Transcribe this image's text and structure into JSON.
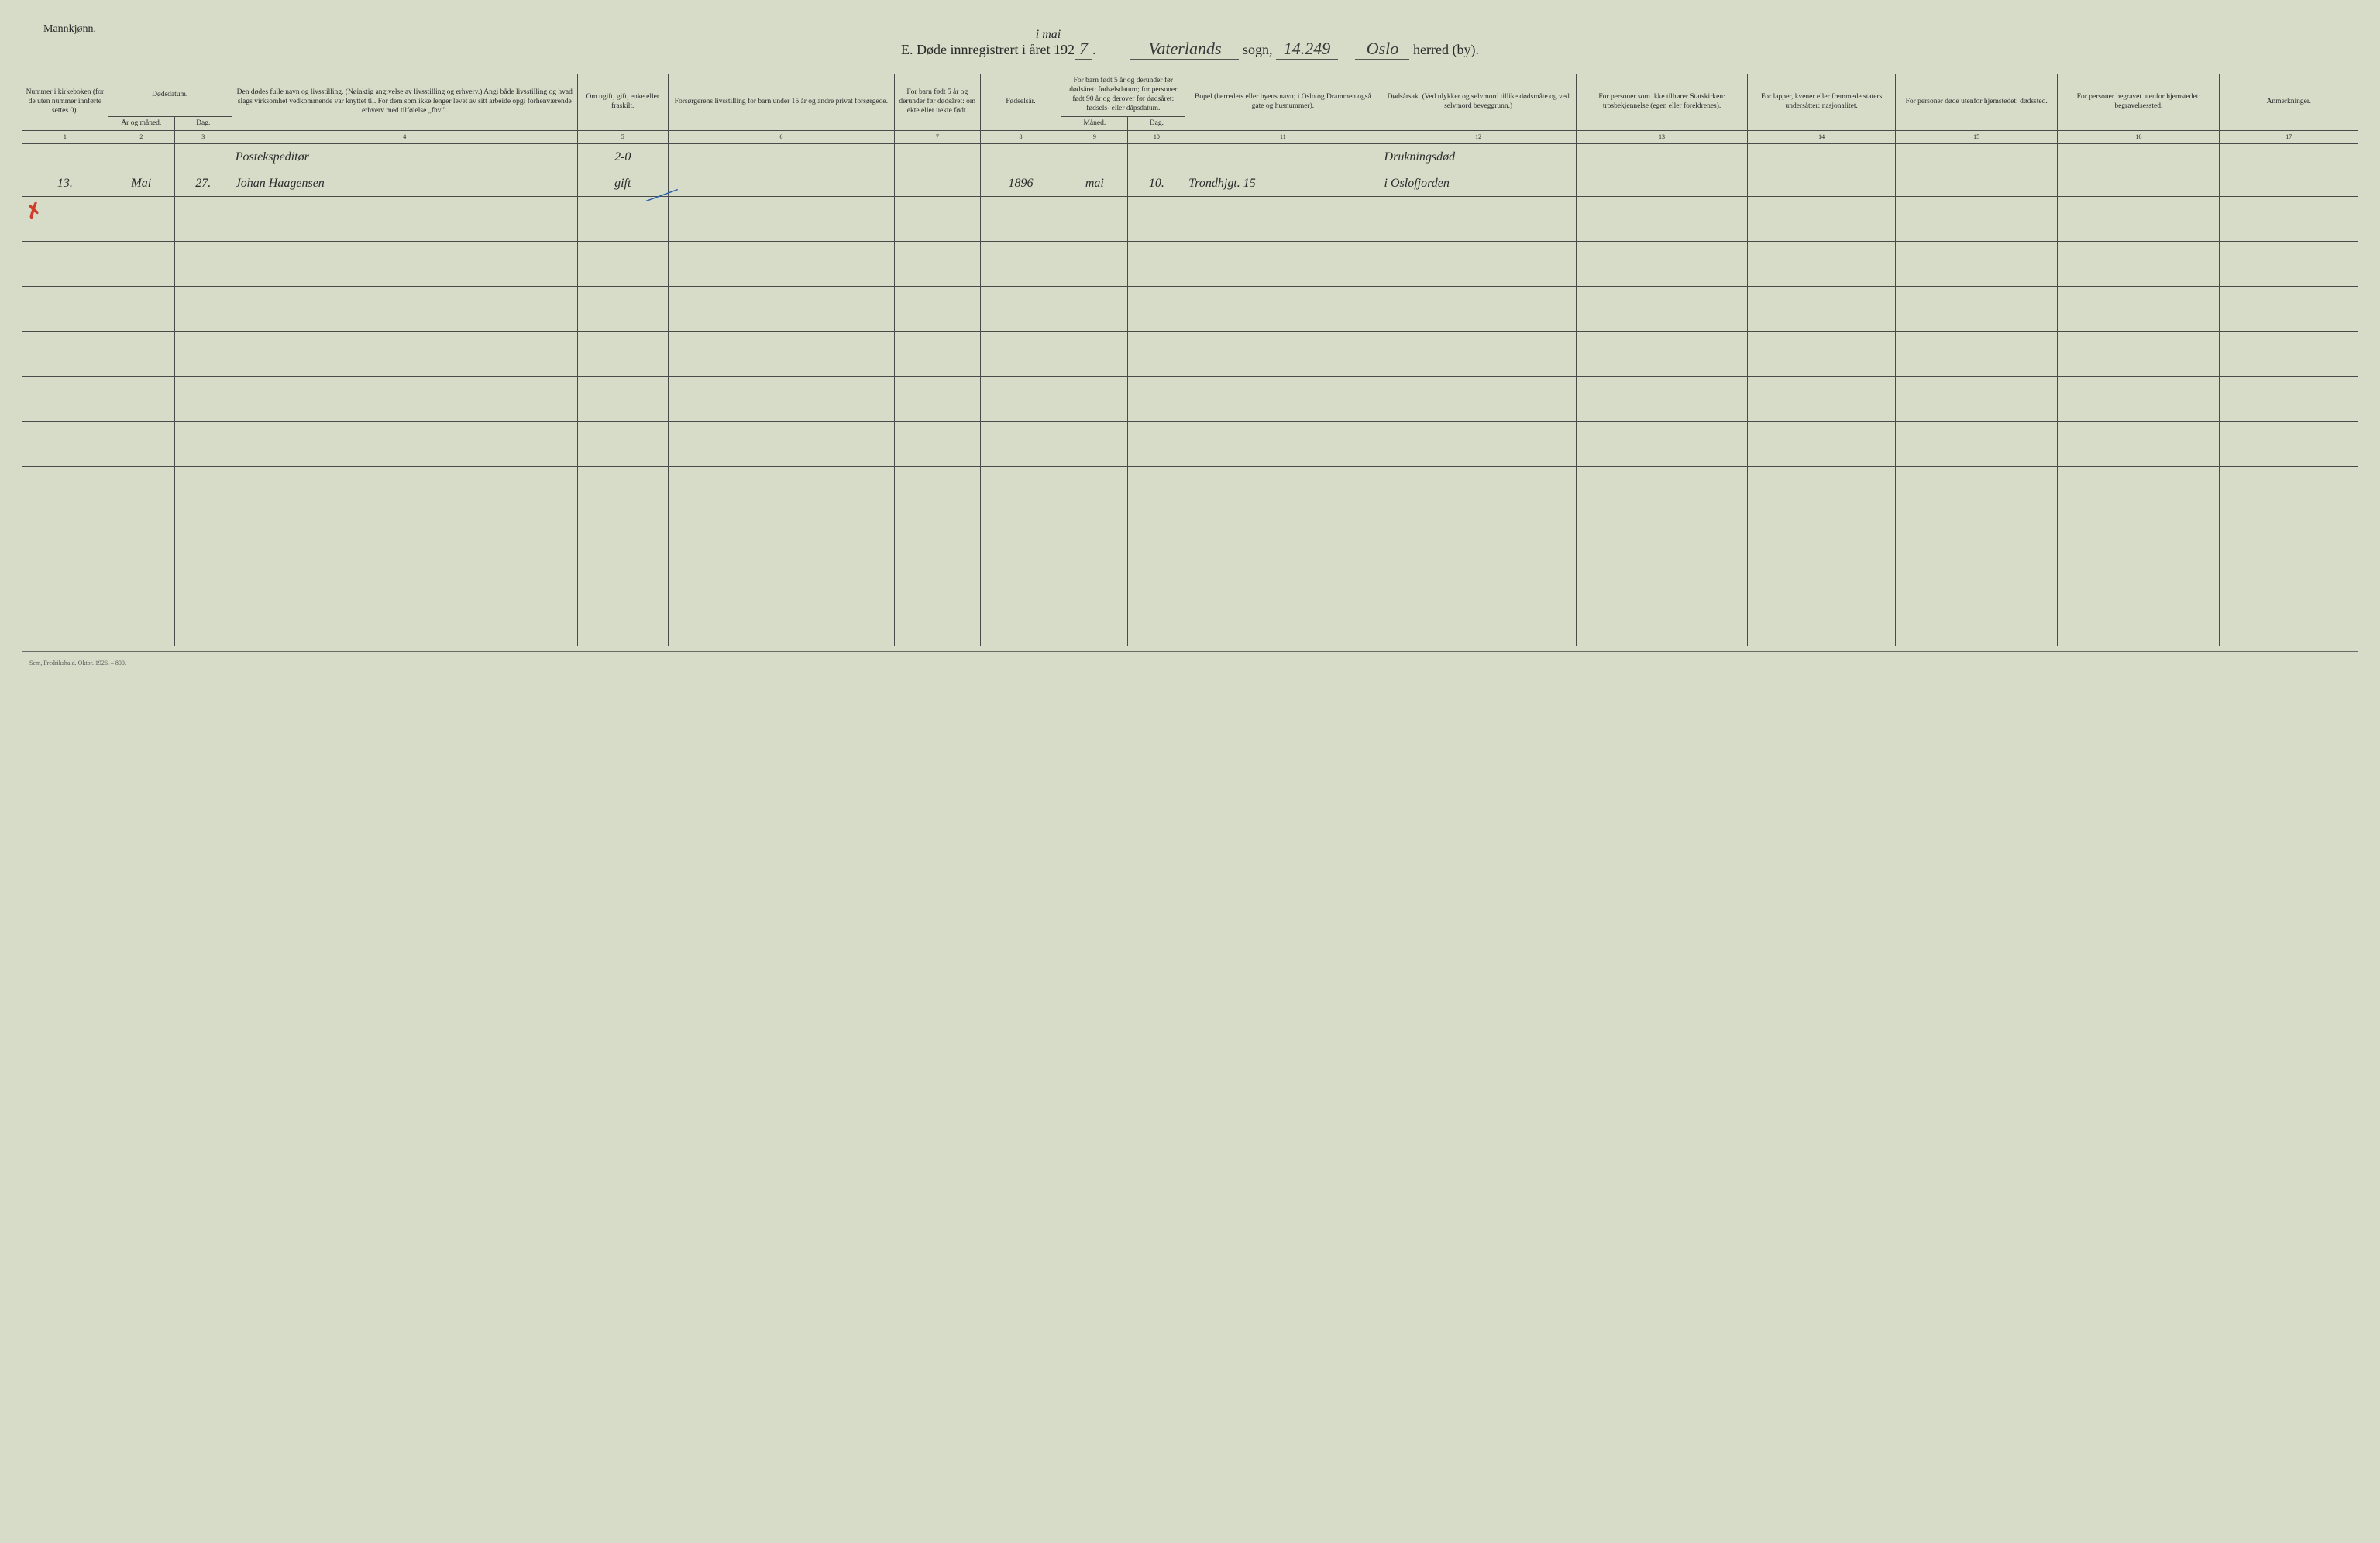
{
  "colors": {
    "paper": "#d6dcc8",
    "ink": "#2a2a2a",
    "rule": "#4a4a4a",
    "red": "#d23a2a",
    "blue": "#2a5fb0"
  },
  "header": {
    "gender_label": "Mannkjønn.",
    "title_prefix": "E.   Døde innregistrert",
    "title_year_label": "i året 192",
    "handwritten_above_year": "i mai",
    "year_digit": "7",
    "title_period": ".",
    "sogn_value": "Vaterlands",
    "sogn_label": "sogn,",
    "code_value": "14.249",
    "herred_value": "Oslo",
    "herred_label": "herred (by)."
  },
  "columns": {
    "c1": "Nummer i kirke­boken (for de uten nummer innførte settes 0).",
    "c2_group": "Dødsdatum.",
    "c2a": "År og måned.",
    "c2b": "Dag.",
    "c4": "Den dødes fulle navn og livsstilling. (Nøiaktig angivelse av livsstilling og erhverv.) Angi både livsstilling og hvad slags virksomhet vedkommende var knyttet til. For dem som ikke lenger levet av sitt arbeide opgi forhenværende erhverv med tilføielse „fhv.\".",
    "c5": "Om ugift, gift, enke eller fraskilt.",
    "c6": "Forsørgerens livsstilling for barn under 15 år og andre privat forsørgede.",
    "c7": "For barn født 5 år og derunder før døds­året: om ekte eller uekte født.",
    "c8": "Fødsels­år.",
    "c9_group": "For barn født 5 år og der­under før dødsåret: fødselsdatum; for personer født 90 år og derover før dødsåret: fødsels- eller dåpsdatum.",
    "c9a": "Måned.",
    "c9b": "Dag.",
    "c11": "Bopel (herredets eller byens navn; i Oslo og Drammen også gate og husnummer).",
    "c12": "Dødsårsak. (Ved ulykker og selv­mord tillike dødsmåte og ved selvmord beveggrunn.)",
    "c13": "For personer som ikke tilhører Statskirken: trosbekjennelse (egen eller foreldrenes).",
    "c14": "For lapper, kvener eller fremmede staters undersåtter: nasjonalitet.",
    "c15": "For personer døde utenfor hjemstedet: dødssted.",
    "c16": "For personer begravet utenfor hjemstedet: begravelsessted.",
    "c17": "Anmerkninger."
  },
  "colnums": [
    "1",
    "2",
    "3",
    "4",
    "5",
    "6",
    "7",
    "8",
    "9",
    "10",
    "11",
    "12",
    "13",
    "14",
    "15",
    "16",
    "17"
  ],
  "entry": {
    "row_top": {
      "occupation_line": "Postekspeditør",
      "marital_note": "2-0",
      "cause_note": "Drukningsdød"
    },
    "row_bottom": {
      "number": "13.",
      "month": "Mai",
      "day": "27.",
      "name": "Johan Haagensen",
      "marital": "gift",
      "birth_year": "1896",
      "birth_month": "mai",
      "birth_day": "10.",
      "residence": "Trondhjgt. 15",
      "cause": "i Oslofjorden"
    }
  },
  "marks": {
    "red_tick": "✗",
    "blue_stroke": "／"
  },
  "footer": "Sem, Fredrikshald. Oktbr. 1926. – 800.",
  "layout": {
    "blank_rows": 10
  }
}
